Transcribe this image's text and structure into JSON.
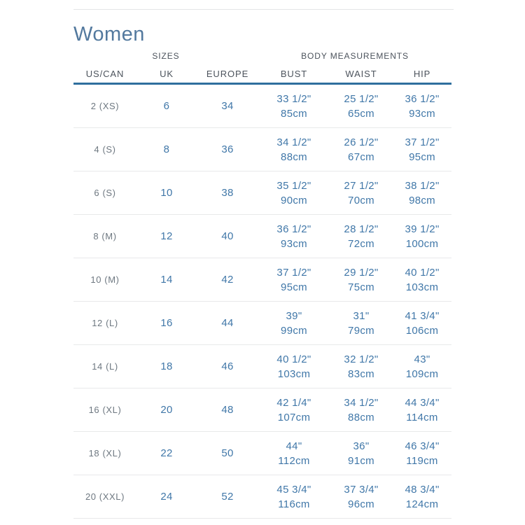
{
  "page": {
    "title": "Women"
  },
  "colors": {
    "accent_blue": "#4077a8",
    "title_blue": "#53799e",
    "header_gray": "#4c535c",
    "label_gray": "#6e7881",
    "rule_blue": "#2f6f9e",
    "divider_gray": "#e8e9ea"
  },
  "table": {
    "group_headers": {
      "sizes": "SIZES",
      "body_measurements": "BODY MEASUREMENTS"
    },
    "columns": [
      "US/CAN",
      "UK",
      "EUROPE",
      "BUST",
      "WAIST",
      "HIP"
    ],
    "rows": [
      {
        "us_can": "2 (XS)",
        "uk": "6",
        "europe": "34",
        "bust": [
          "33 1/2\"",
          "85cm"
        ],
        "waist": [
          "25 1/2\"",
          "65cm"
        ],
        "hip": [
          "36 1/2\"",
          "93cm"
        ]
      },
      {
        "us_can": "4 (S)",
        "uk": "8",
        "europe": "36",
        "bust": [
          "34 1/2\"",
          "88cm"
        ],
        "waist": [
          "26 1/2\"",
          "67cm"
        ],
        "hip": [
          "37 1/2\"",
          "95cm"
        ]
      },
      {
        "us_can": "6 (S)",
        "uk": "10",
        "europe": "38",
        "bust": [
          "35 1/2\"",
          "90cm"
        ],
        "waist": [
          "27 1/2\"",
          "70cm"
        ],
        "hip": [
          "38 1/2\"",
          "98cm"
        ]
      },
      {
        "us_can": "8 (M)",
        "uk": "12",
        "europe": "40",
        "bust": [
          "36 1/2\"",
          "93cm"
        ],
        "waist": [
          "28 1/2\"",
          "72cm"
        ],
        "hip": [
          "39 1/2\"",
          "100cm"
        ]
      },
      {
        "us_can": "10 (M)",
        "uk": "14",
        "europe": "42",
        "bust": [
          "37 1/2\"",
          "95cm"
        ],
        "waist": [
          "29 1/2\"",
          "75cm"
        ],
        "hip": [
          "40 1/2\"",
          "103cm"
        ]
      },
      {
        "us_can": "12 (L)",
        "uk": "16",
        "europe": "44",
        "bust": [
          "39\"",
          "99cm"
        ],
        "waist": [
          "31\"",
          "79cm"
        ],
        "hip": [
          "41 3/4\"",
          "106cm"
        ]
      },
      {
        "us_can": "14 (L)",
        "uk": "18",
        "europe": "46",
        "bust": [
          "40 1/2\"",
          "103cm"
        ],
        "waist": [
          "32 1/2\"",
          "83cm"
        ],
        "hip": [
          "43\"",
          "109cm"
        ]
      },
      {
        "us_can": "16 (XL)",
        "uk": "20",
        "europe": "48",
        "bust": [
          "42 1/4\"",
          "107cm"
        ],
        "waist": [
          "34 1/2\"",
          "88cm"
        ],
        "hip": [
          "44 3/4\"",
          "114cm"
        ]
      },
      {
        "us_can": "18 (XL)",
        "uk": "22",
        "europe": "50",
        "bust": [
          "44\"",
          "112cm"
        ],
        "waist": [
          "36\"",
          "91cm"
        ],
        "hip": [
          "46 3/4\"",
          "119cm"
        ]
      },
      {
        "us_can": "20 (XXL)",
        "uk": "24",
        "europe": "52",
        "bust": [
          "45 3/4\"",
          "116cm"
        ],
        "waist": [
          "37 3/4\"",
          "96cm"
        ],
        "hip": [
          "48 3/4\"",
          "124cm"
        ]
      }
    ]
  }
}
